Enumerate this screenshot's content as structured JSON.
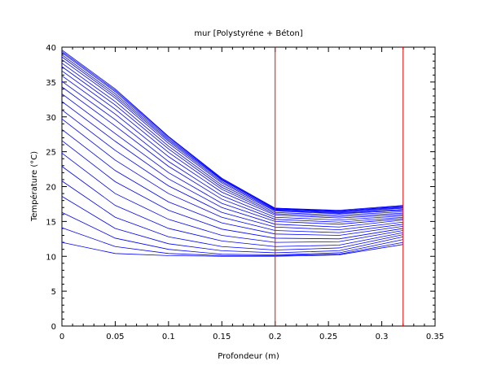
{
  "chart_data": {
    "type": "line",
    "title": "mur [Polystyréne + Béton]",
    "xlabel": "Profondeur (m)",
    "ylabel": "Température (°C)",
    "xlim": [
      0,
      0.35
    ],
    "ylim": [
      0,
      40
    ],
    "x_ticks": [
      "0",
      "0.05",
      "0.1",
      "0.15",
      "0.2",
      "0.25",
      "0.3",
      "0.35"
    ],
    "y_ticks": [
      "0",
      "5",
      "10",
      "15",
      "20",
      "25",
      "30",
      "35",
      "40"
    ],
    "grid": false,
    "legend": "none",
    "series_color": "#0000ff",
    "marker_color": "#ff0000",
    "vertical_markers_x": [
      0.2,
      0.32
    ],
    "series": [
      {
        "x": [
          0,
          0.05,
          0.1,
          0.15,
          0.2,
          0.26,
          0.32
        ],
        "y": [
          12.0,
          10.4,
          10.1,
          10.0,
          10.0,
          10.2,
          11.7
        ]
      },
      {
        "x": [
          0,
          0.05,
          0.1,
          0.15,
          0.2,
          0.26,
          0.32
        ],
        "y": [
          14.1,
          11.4,
          10.4,
          10.1,
          10.1,
          10.3,
          12.0
        ]
      },
      {
        "x": [
          0,
          0.05,
          0.1,
          0.15,
          0.2,
          0.26,
          0.32
        ],
        "y": [
          16.3,
          12.6,
          11.0,
          10.3,
          10.2,
          10.5,
          12.4
        ]
      },
      {
        "x": [
          0,
          0.05,
          0.1,
          0.15,
          0.2,
          0.26,
          0.32
        ],
        "y": [
          18.6,
          14.0,
          11.8,
          10.8,
          10.5,
          10.8,
          12.8
        ]
      },
      {
        "x": [
          0,
          0.05,
          0.1,
          0.15,
          0.2,
          0.26,
          0.32
        ],
        "y": [
          20.8,
          15.6,
          12.8,
          11.4,
          10.9,
          11.2,
          13.1
        ]
      },
      {
        "x": [
          0,
          0.05,
          0.1,
          0.15,
          0.2,
          0.26,
          0.32
        ],
        "y": [
          22.9,
          17.3,
          14.0,
          12.2,
          11.4,
          11.6,
          13.4
        ]
      },
      {
        "x": [
          0,
          0.05,
          0.1,
          0.15,
          0.2,
          0.26,
          0.32
        ],
        "y": [
          24.8,
          19.0,
          15.3,
          13.0,
          12.0,
          12.1,
          13.7
        ]
      },
      {
        "x": [
          0,
          0.05,
          0.1,
          0.15,
          0.2,
          0.26,
          0.32
        ],
        "y": [
          26.6,
          20.7,
          16.6,
          13.9,
          12.6,
          12.5,
          14.0
        ]
      },
      {
        "x": [
          0,
          0.05,
          0.1,
          0.15,
          0.2,
          0.26,
          0.32
        ],
        "y": [
          28.2,
          22.3,
          17.8,
          14.8,
          13.2,
          13.0,
          14.3
        ]
      },
      {
        "x": [
          0,
          0.05,
          0.1,
          0.15,
          0.2,
          0.26,
          0.32
        ],
        "y": [
          29.7,
          23.8,
          19.0,
          15.6,
          13.7,
          13.4,
          14.6
        ]
      },
      {
        "x": [
          0,
          0.05,
          0.1,
          0.15,
          0.2,
          0.26,
          0.32
        ],
        "y": [
          31.0,
          25.2,
          20.1,
          16.3,
          14.2,
          13.8,
          14.9
        ]
      },
      {
        "x": [
          0,
          0.05,
          0.1,
          0.15,
          0.2,
          0.26,
          0.32
        ],
        "y": [
          32.2,
          26.5,
          21.1,
          17.0,
          14.6,
          14.2,
          15.2
        ]
      },
      {
        "x": [
          0,
          0.05,
          0.1,
          0.15,
          0.2,
          0.26,
          0.32
        ],
        "y": [
          33.3,
          27.6,
          22.0,
          17.6,
          15.0,
          14.6,
          15.4
        ]
      },
      {
        "x": [
          0,
          0.05,
          0.1,
          0.15,
          0.2,
          0.26,
          0.32
        ],
        "y": [
          34.3,
          28.7,
          22.9,
          18.2,
          15.3,
          14.9,
          15.6
        ]
      },
      {
        "x": [
          0,
          0.05,
          0.1,
          0.15,
          0.2,
          0.26,
          0.32
        ],
        "y": [
          35.1,
          29.6,
          23.6,
          18.7,
          15.6,
          15.2,
          15.8
        ]
      },
      {
        "x": [
          0,
          0.05,
          0.1,
          0.15,
          0.2,
          0.26,
          0.32
        ],
        "y": [
          35.9,
          30.4,
          24.3,
          19.2,
          15.9,
          15.5,
          16.0
        ]
      },
      {
        "x": [
          0,
          0.05,
          0.1,
          0.15,
          0.2,
          0.26,
          0.32
        ],
        "y": [
          36.6,
          31.1,
          24.9,
          19.6,
          16.1,
          15.7,
          16.2
        ]
      },
      {
        "x": [
          0,
          0.05,
          0.1,
          0.15,
          0.2,
          0.26,
          0.32
        ],
        "y": [
          37.2,
          31.7,
          25.4,
          19.9,
          16.3,
          15.9,
          16.4
        ]
      },
      {
        "x": [
          0,
          0.05,
          0.1,
          0.15,
          0.2,
          0.26,
          0.32
        ],
        "y": [
          37.7,
          32.2,
          25.8,
          20.2,
          16.5,
          16.1,
          16.6
        ]
      },
      {
        "x": [
          0,
          0.05,
          0.1,
          0.15,
          0.2,
          0.26,
          0.32
        ],
        "y": [
          38.2,
          32.7,
          26.2,
          20.5,
          16.6,
          16.2,
          16.7
        ]
      },
      {
        "x": [
          0,
          0.05,
          0.1,
          0.15,
          0.2,
          0.26,
          0.32
        ],
        "y": [
          38.6,
          33.0,
          26.5,
          20.7,
          16.7,
          16.3,
          16.9
        ]
      },
      {
        "x": [
          0,
          0.05,
          0.1,
          0.15,
          0.2,
          0.26,
          0.32
        ],
        "y": [
          38.9,
          33.3,
          26.7,
          20.9,
          16.8,
          16.4,
          17.0
        ]
      },
      {
        "x": [
          0,
          0.05,
          0.1,
          0.15,
          0.2,
          0.26,
          0.32
        ],
        "y": [
          39.2,
          33.6,
          26.9,
          21.0,
          16.8,
          16.5,
          17.1
        ]
      },
      {
        "x": [
          0,
          0.05,
          0.1,
          0.15,
          0.2,
          0.26,
          0.32
        ],
        "y": [
          39.4,
          33.8,
          27.1,
          21.1,
          16.9,
          16.5,
          17.2
        ]
      },
      {
        "x": [
          0,
          0.05,
          0.1,
          0.15,
          0.2,
          0.26,
          0.32
        ],
        "y": [
          39.6,
          34.0,
          27.2,
          21.2,
          16.9,
          16.6,
          17.3
        ]
      }
    ]
  }
}
